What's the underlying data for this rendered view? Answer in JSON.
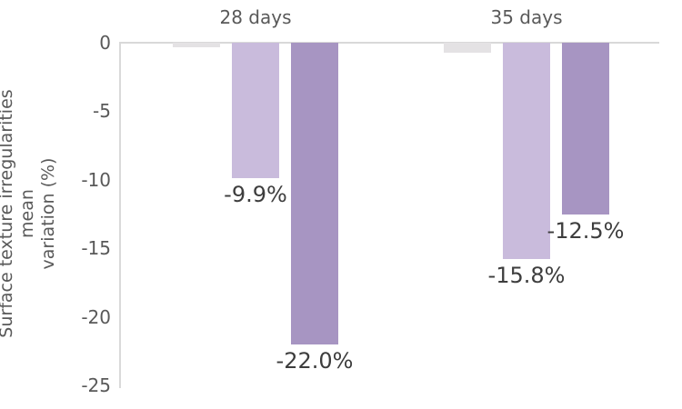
{
  "chart_data": {
    "type": "bar",
    "title": "",
    "categories": [
      "28 days",
      "35 days"
    ],
    "series": [
      {
        "name": "gray-series",
        "color": "#e4e2e4",
        "pattern": true,
        "values": [
          -0.3,
          -0.7
        ],
        "data_labels": [
          "",
          ""
        ]
      },
      {
        "name": "light-purple-series",
        "color": "#c9bbdc",
        "pattern": false,
        "values": [
          -9.9,
          -15.8
        ],
        "data_labels": [
          "-9.9%",
          "-15.8%"
        ]
      },
      {
        "name": "dark-purple-series",
        "color": "#a795c2",
        "pattern": false,
        "values": [
          -22.0,
          -12.5
        ],
        "data_labels": [
          "-22.0%",
          "-12.5%"
        ]
      }
    ],
    "xlabel": "",
    "ylabel": "Surface texture irregularities mean variation (%)",
    "ylabel_lines": [
      "Surface texture irregularities mean",
      "variation (%)"
    ],
    "ylim": [
      -25,
      0
    ],
    "yticks": [
      0,
      -5,
      -10,
      -15,
      -20,
      -25
    ],
    "grid": false,
    "legend": false,
    "category_label_position": "top",
    "axis_color": "#d9d9d9",
    "text_color": "#595959",
    "data_label_color": "#3d3d3d",
    "background": "#ffffff"
  }
}
